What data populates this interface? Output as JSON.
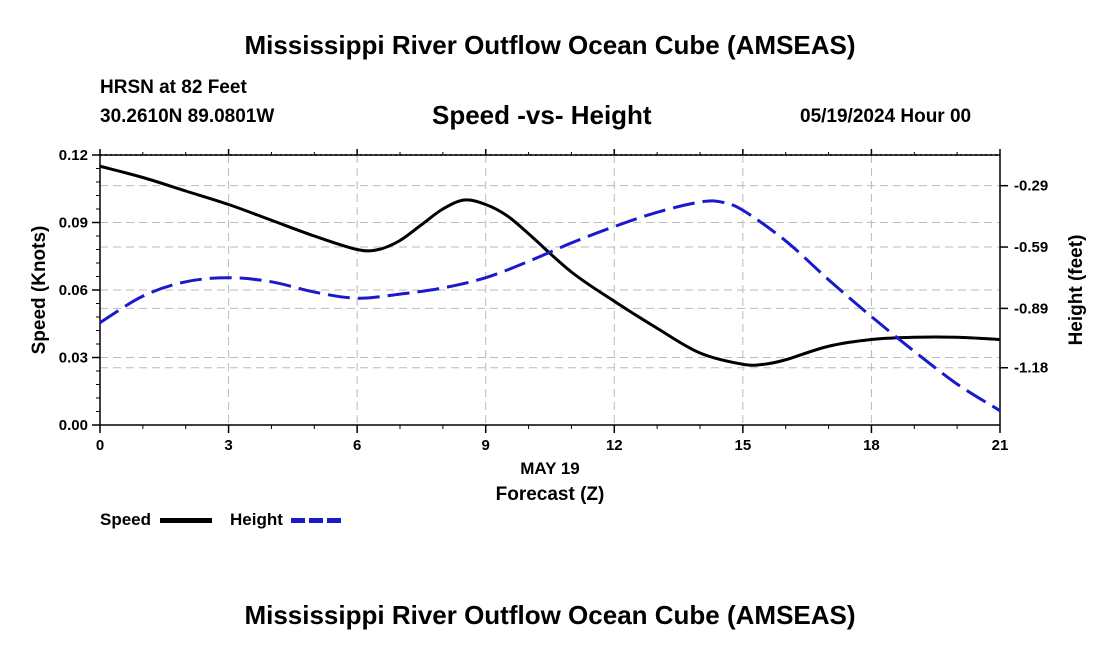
{
  "header": {
    "title": "Mississippi River Outflow Ocean Cube (AMSEAS)",
    "station": "HRSN at 82 Feet",
    "location": "30.2610N  89.0801W",
    "subtitle": "Speed -vs- Height",
    "datetime": "05/19/2024 Hour 00"
  },
  "footer": {
    "title": "Mississippi River Outflow Ocean Cube (AMSEAS)"
  },
  "legend": {
    "speed_label": "Speed",
    "height_label": "Height",
    "speed_color": "#000000",
    "height_color": "#1a1acc"
  },
  "chart_data": {
    "type": "line",
    "title": "Speed -vs- Height",
    "xlabel": "Forecast (Z)",
    "xlabel_date": "MAY 19",
    "ylabel": "Speed (Knots)",
    "y2label": "Height (feet)",
    "xlim": [
      0,
      21
    ],
    "ylim": [
      0,
      0.12
    ],
    "y2lim": [
      -1.46,
      -0.14
    ],
    "x_ticks": [
      "0",
      "3",
      "6",
      "9",
      "12",
      "15",
      "18",
      "21"
    ],
    "y_ticks": [
      "0.00",
      "0.03",
      "0.06",
      "0.09",
      "0.12"
    ],
    "y2_ticks": [
      "-0.29",
      "-0.59",
      "-0.89",
      "-1.18"
    ],
    "y2_tick_values": [
      -0.29,
      -0.59,
      -0.89,
      -1.18
    ],
    "grid": true,
    "series": [
      {
        "name": "Speed",
        "axis": "left",
        "color": "#000000",
        "style": "solid",
        "x": [
          0,
          1,
          2,
          3,
          4,
          5,
          6,
          6.5,
          7,
          7.5,
          8,
          8.5,
          9,
          9.5,
          10,
          11,
          12,
          13,
          14,
          15,
          15.5,
          16,
          17,
          18,
          19,
          20,
          21
        ],
        "values": [
          0.115,
          0.11,
          0.104,
          0.098,
          0.091,
          0.084,
          0.078,
          0.078,
          0.082,
          0.089,
          0.096,
          0.1,
          0.098,
          0.093,
          0.085,
          0.068,
          0.055,
          0.043,
          0.032,
          0.027,
          0.027,
          0.029,
          0.035,
          0.038,
          0.039,
          0.039,
          0.038
        ]
      },
      {
        "name": "Height",
        "axis": "right",
        "color": "#1a1acc",
        "style": "dashed",
        "x": [
          0,
          1,
          2,
          3,
          4,
          5,
          6,
          7,
          8,
          9,
          10,
          11,
          12,
          13,
          14,
          14.5,
          15,
          16,
          17,
          18,
          19,
          20,
          21
        ],
        "values": [
          -0.96,
          -0.83,
          -0.76,
          -0.74,
          -0.76,
          -0.81,
          -0.84,
          -0.82,
          -0.79,
          -0.74,
          -0.66,
          -0.57,
          -0.49,
          -0.42,
          -0.37,
          -0.37,
          -0.41,
          -0.56,
          -0.75,
          -0.93,
          -1.1,
          -1.26,
          -1.39
        ]
      }
    ]
  }
}
